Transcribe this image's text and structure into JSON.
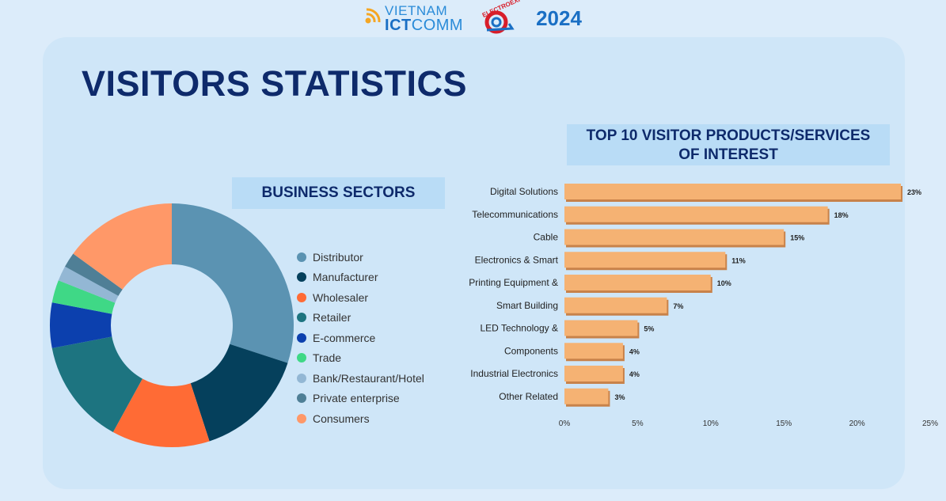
{
  "header": {
    "logo_vietnam": "VIETNAM",
    "logo_ict": "ICT",
    "logo_comm": "COMM",
    "logo_electro": "ELECTROEXPO",
    "year": "2024"
  },
  "page_title": "VISITORS STATISTICS",
  "sectors_label": "BUSINESS SECTORS",
  "top10_label_line1": "TOP 10 VISITOR PRODUCTS/SERVICES",
  "top10_label_line2": "OF INTEREST",
  "colors": {
    "brand_navy": "#0e2a6b",
    "bar_fill": "#f5b273",
    "bar_shadow": "#c8824a"
  },
  "chart_data": [
    {
      "type": "pie",
      "title": "BUSINESS SECTORS",
      "donut": true,
      "categories": [
        "Distributor",
        "Manufacturer",
        "Wholesaler",
        "Retailer",
        "E-commerce",
        "Trade",
        "Bank/Restaurant/Hotel",
        "Private enterprise",
        "Consumers"
      ],
      "values": [
        30,
        15,
        13,
        14,
        6,
        3,
        2,
        2,
        15
      ],
      "colors": [
        "#5b93b2",
        "#05405c",
        "#ff6b35",
        "#1d7480",
        "#0c40ae",
        "#3fd886",
        "#93b7d4",
        "#4f7f96",
        "#ff9868"
      ],
      "legend_position": "right"
    },
    {
      "type": "bar",
      "orientation": "horizontal",
      "title": "TOP 10 VISITOR PRODUCTS/SERVICES OF INTEREST",
      "categories": [
        "Digital Solutions",
        "Telecommunications",
        "Cable",
        "Electronics & Smart",
        "Printing Equipment &",
        "Smart Building",
        "LED Technology &",
        "Components",
        "Industrial Electronics",
        "Other Related"
      ],
      "values": [
        23,
        18,
        15,
        11,
        10,
        7,
        5,
        4,
        4,
        3
      ],
      "data_labels": [
        "23%",
        "18%",
        "15%",
        "11%",
        "10%",
        "7%",
        "5%",
        "4%",
        "4%",
        "3%"
      ],
      "xlim": [
        0,
        25
      ],
      "x_ticks": [
        0,
        5,
        10,
        15,
        20,
        25
      ],
      "x_tick_labels": [
        "0%",
        "5%",
        "10%",
        "15%",
        "20%",
        "25%"
      ],
      "grid": false
    }
  ]
}
